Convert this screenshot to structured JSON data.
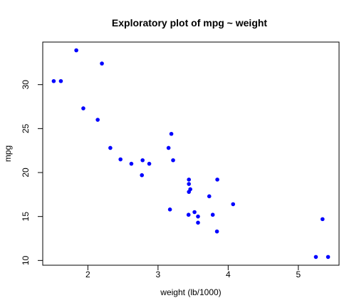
{
  "chart_data": {
    "type": "scatter",
    "title": "Exploratory plot of mpg ~ weight",
    "xlabel": "weight (lb/1000)",
    "ylabel": "mpg",
    "xlim": [
      1.513,
      5.424
    ],
    "ylim": [
      10.4,
      33.9
    ],
    "xticks": [
      2,
      3,
      4,
      5
    ],
    "yticks": [
      10,
      15,
      20,
      25,
      30
    ],
    "xtick_labels": [
      "2",
      "3",
      "4",
      "5"
    ],
    "ytick_labels": [
      "10",
      "15",
      "20",
      "25",
      "30"
    ],
    "grid": false,
    "point_color": "#0000ff",
    "points": [
      {
        "x": 2.62,
        "y": 21.0
      },
      {
        "x": 2.875,
        "y": 21.0
      },
      {
        "x": 2.32,
        "y": 22.8
      },
      {
        "x": 3.215,
        "y": 21.4
      },
      {
        "x": 3.44,
        "y": 18.7
      },
      {
        "x": 3.46,
        "y": 18.1
      },
      {
        "x": 3.57,
        "y": 14.3
      },
      {
        "x": 3.19,
        "y": 24.4
      },
      {
        "x": 3.15,
        "y": 22.8
      },
      {
        "x": 3.44,
        "y": 19.2
      },
      {
        "x": 3.44,
        "y": 17.8
      },
      {
        "x": 4.07,
        "y": 16.4
      },
      {
        "x": 3.73,
        "y": 17.3
      },
      {
        "x": 3.78,
        "y": 15.2
      },
      {
        "x": 5.25,
        "y": 10.4
      },
      {
        "x": 5.424,
        "y": 10.4
      },
      {
        "x": 5.345,
        "y": 14.7
      },
      {
        "x": 2.2,
        "y": 32.4
      },
      {
        "x": 1.615,
        "y": 30.4
      },
      {
        "x": 1.835,
        "y": 33.9
      },
      {
        "x": 2.465,
        "y": 21.5
      },
      {
        "x": 3.52,
        "y": 15.5
      },
      {
        "x": 3.435,
        "y": 15.2
      },
      {
        "x": 3.84,
        "y": 13.3
      },
      {
        "x": 3.845,
        "y": 19.2
      },
      {
        "x": 1.935,
        "y": 27.3
      },
      {
        "x": 2.14,
        "y": 26.0
      },
      {
        "x": 1.513,
        "y": 30.4
      },
      {
        "x": 3.17,
        "y": 15.8
      },
      {
        "x": 2.77,
        "y": 19.7
      },
      {
        "x": 3.57,
        "y": 15.0
      },
      {
        "x": 2.78,
        "y": 21.4
      }
    ]
  }
}
